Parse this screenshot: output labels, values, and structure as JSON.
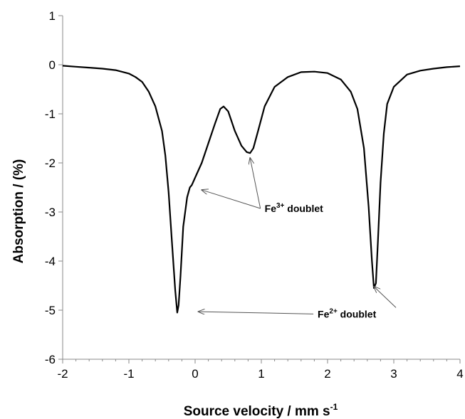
{
  "chart_data": {
    "type": "line",
    "title": "",
    "xlabel": "Source velocity / mm s",
    "xlabel_sup": "-1",
    "ylabel": "Absorption / (%)",
    "xlim": [
      -2,
      4
    ],
    "ylim": [
      -6,
      1
    ],
    "xticks": [
      "-2",
      "-1",
      "0",
      "1",
      "2",
      "3",
      "4"
    ],
    "yticks": [
      "1",
      "0",
      "-1",
      "-2",
      "-3",
      "-4",
      "-5",
      "-6"
    ],
    "grid": false,
    "legend": "none",
    "line_color": "#000000",
    "series": [
      {
        "x": [
          -2.0,
          -1.8,
          -1.6,
          -1.4,
          -1.2,
          -1.0,
          -0.9,
          -0.8,
          -0.7,
          -0.6,
          -0.5,
          -0.45,
          -0.4,
          -0.35,
          -0.3,
          -0.27,
          -0.25,
          -0.22,
          -0.18,
          -0.12,
          -0.08,
          -0.05,
          0.0,
          0.1,
          0.2,
          0.3,
          0.38,
          0.43,
          0.5,
          0.6,
          0.7,
          0.78,
          0.83,
          0.88,
          0.95,
          1.05,
          1.2,
          1.4,
          1.6,
          1.8,
          2.0,
          2.2,
          2.35,
          2.45,
          2.55,
          2.62,
          2.67,
          2.7,
          2.73,
          2.76,
          2.8,
          2.85,
          2.9,
          3.0,
          3.2,
          3.4,
          3.6,
          3.8,
          4.0
        ],
        "y": [
          -0.02,
          -0.04,
          -0.06,
          -0.08,
          -0.11,
          -0.18,
          -0.25,
          -0.35,
          -0.55,
          -0.85,
          -1.35,
          -1.85,
          -2.6,
          -3.6,
          -4.6,
          -5.05,
          -4.9,
          -4.3,
          -3.3,
          -2.7,
          -2.5,
          -2.45,
          -2.3,
          -2.0,
          -1.6,
          -1.2,
          -0.9,
          -0.85,
          -0.95,
          -1.35,
          -1.65,
          -1.78,
          -1.8,
          -1.7,
          -1.35,
          -0.85,
          -0.45,
          -0.25,
          -0.15,
          -0.14,
          -0.17,
          -0.3,
          -0.55,
          -0.9,
          -1.7,
          -2.9,
          -4.0,
          -4.55,
          -4.45,
          -3.6,
          -2.4,
          -1.4,
          -0.8,
          -0.45,
          -0.2,
          -0.12,
          -0.08,
          -0.05,
          -0.03
        ]
      }
    ],
    "annotations": [
      {
        "text": "Fe",
        "sup": "3+",
        "suffix": " doublet",
        "x": 1.05,
        "y": -3.0,
        "arrows": [
          [
            0.83,
            -1.9
          ],
          [
            0.1,
            -2.55
          ]
        ]
      },
      {
        "text": "Fe",
        "sup": "2+",
        "suffix": " doublet",
        "x": 1.85,
        "y": -5.15,
        "arrows": [
          [
            0.05,
            -5.03
          ],
          [
            2.7,
            -4.52
          ]
        ]
      }
    ]
  }
}
